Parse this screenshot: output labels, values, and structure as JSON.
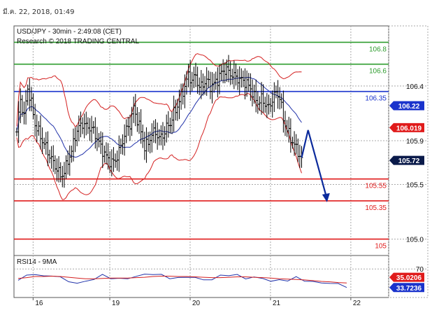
{
  "header": {
    "timestamp": "มี.ค. 22, 2018, 01:49"
  },
  "colors": {
    "resistance": "#2e9c2e",
    "pivot": "#1a33cc",
    "support": "#e01b1b",
    "price_bars": "#000000",
    "bollinger": "#d42020",
    "moving_average": "#2233aa",
    "forecast_arrow": "#0b2a9c",
    "badge_price": "#0a1a4a",
    "badge_red": "#e01b1b",
    "badge_blue": "#1a33cc",
    "grid": "#a8a8a8"
  },
  "chart_data": [
    {
      "type": "ohlc",
      "title": "USD/JPY - 30min - 2:49:08 (CET)",
      "subtitle": "Research © 2018 TRADING CENTRAL",
      "x_ticks": [
        {
          "label": "16",
          "bar": 12
        },
        {
          "label": "19",
          "bar": 54
        },
        {
          "label": "20",
          "bar": 98
        },
        {
          "label": "21",
          "bar": 142
        },
        {
          "label": "22",
          "bar": 186
        }
      ],
      "y_ticks": [
        "106.4",
        "105.9",
        "105.5",
        "105.0"
      ],
      "y_tick_values": [
        106.4,
        105.9,
        105.5,
        105.0
      ],
      "ylim": [
        104.85,
        106.95
      ],
      "grid": true,
      "levels": [
        {
          "label": "106.8",
          "value": 106.8,
          "role": "resistance"
        },
        {
          "label": "106.6",
          "value": 106.6,
          "role": "resistance"
        },
        {
          "label": "106.35",
          "value": 106.35,
          "role": "pivot"
        },
        {
          "label": "105.55",
          "value": 105.55,
          "role": "support"
        },
        {
          "label": "105.35",
          "value": 105.35,
          "role": "support"
        },
        {
          "label": "105",
          "value": 105.0,
          "role": "support"
        }
      ],
      "badges": [
        {
          "label": "106.22",
          "value": 106.22,
          "role": "moving_average"
        },
        {
          "label": "106.019",
          "value": 106.019,
          "role": "bollinger"
        },
        {
          "label": "105.72",
          "value": 105.72,
          "role": "price"
        }
      ],
      "price_series": [
        [
          0,
          105.98
        ],
        [
          2,
          106.28
        ],
        [
          4,
          106.12
        ],
        [
          6,
          106.38
        ],
        [
          8,
          106.24
        ],
        [
          10,
          106.05
        ],
        [
          12,
          105.98
        ],
        [
          14,
          105.9
        ],
        [
          16,
          105.84
        ],
        [
          18,
          105.76
        ],
        [
          20,
          105.7
        ],
        [
          22,
          105.64
        ],
        [
          24,
          105.58
        ],
        [
          26,
          105.61
        ],
        [
          28,
          105.72
        ],
        [
          30,
          105.8
        ],
        [
          32,
          105.95
        ],
        [
          34,
          106.02
        ],
        [
          36,
          106.06
        ],
        [
          38,
          106.03
        ],
        [
          40,
          106.02
        ],
        [
          42,
          105.99
        ],
        [
          44,
          105.92
        ],
        [
          46,
          105.84
        ],
        [
          48,
          105.78
        ],
        [
          50,
          105.73
        ],
        [
          52,
          105.7
        ],
        [
          54,
          105.72
        ],
        [
          56,
          105.8
        ],
        [
          58,
          105.9
        ],
        [
          60,
          106.0
        ],
        [
          62,
          106.05
        ],
        [
          64,
          106.2
        ],
        [
          66,
          106.09
        ],
        [
          68,
          105.98
        ],
        [
          70,
          105.84
        ],
        [
          72,
          105.88
        ],
        [
          74,
          105.96
        ],
        [
          76,
          105.98
        ],
        [
          78,
          105.92
        ],
        [
          80,
          105.95
        ],
        [
          82,
          106.02
        ],
        [
          84,
          106.06
        ],
        [
          86,
          106.15
        ],
        [
          88,
          106.22
        ],
        [
          90,
          106.3
        ],
        [
          92,
          106.4
        ],
        [
          94,
          106.5
        ],
        [
          96,
          106.45
        ],
        [
          98,
          106.5
        ],
        [
          100,
          106.38
        ],
        [
          102,
          106.42
        ],
        [
          104,
          106.45
        ],
        [
          106,
          106.4
        ],
        [
          108,
          106.42
        ],
        [
          110,
          106.46
        ],
        [
          112,
          106.52
        ],
        [
          114,
          106.55
        ],
        [
          116,
          106.53
        ],
        [
          118,
          106.5
        ],
        [
          120,
          106.48
        ],
        [
          122,
          106.46
        ],
        [
          124,
          106.45
        ],
        [
          126,
          106.42
        ],
        [
          128,
          106.38
        ],
        [
          130,
          106.3
        ],
        [
          132,
          106.25
        ],
        [
          134,
          106.28
        ],
        [
          136,
          106.24
        ],
        [
          138,
          106.2
        ],
        [
          140,
          106.28
        ],
        [
          142,
          106.34
        ],
        [
          144,
          106.3
        ],
        [
          146,
          106.1
        ],
        [
          148,
          106.0
        ],
        [
          150,
          105.92
        ],
        [
          152,
          105.86
        ],
        [
          154,
          105.8
        ],
        [
          156,
          105.72
        ]
      ],
      "forecast": [
        [
          158,
          105.83
        ],
        [
          168,
          105.35
        ]
      ]
    },
    {
      "type": "line",
      "title": "RSI14 - 9MA",
      "y_ticks": [
        "70"
      ],
      "ylim": [
        0,
        100
      ],
      "series": [
        {
          "name": "RSI14",
          "values": [
            40,
            52,
            58,
            48,
            55,
            46,
            38,
            32,
            36,
            45,
            52,
            48,
            42,
            46,
            50,
            55,
            58,
            52,
            48,
            44,
            50,
            47,
            40,
            44,
            50,
            56,
            52,
            46,
            48,
            44,
            40,
            38,
            42,
            46,
            40,
            36,
            32,
            34,
            28,
            25
          ]
        },
        {
          "name": "9MA",
          "values": [
            45,
            47,
            50,
            50,
            51,
            50,
            48,
            46,
            44,
            44,
            45,
            46,
            46,
            46,
            47,
            48,
            50,
            51,
            51,
            50,
            50,
            49,
            48,
            47,
            47,
            48,
            49,
            49,
            48,
            47,
            46,
            44,
            43,
            42,
            41,
            39,
            37,
            36,
            34,
            33
          ]
        }
      ],
      "badges": [
        {
          "label": "35.0206",
          "value": 35.0206,
          "role": "bollinger"
        },
        {
          "label": "33.7236",
          "value": 33.7236,
          "role": "moving_average"
        }
      ]
    }
  ]
}
